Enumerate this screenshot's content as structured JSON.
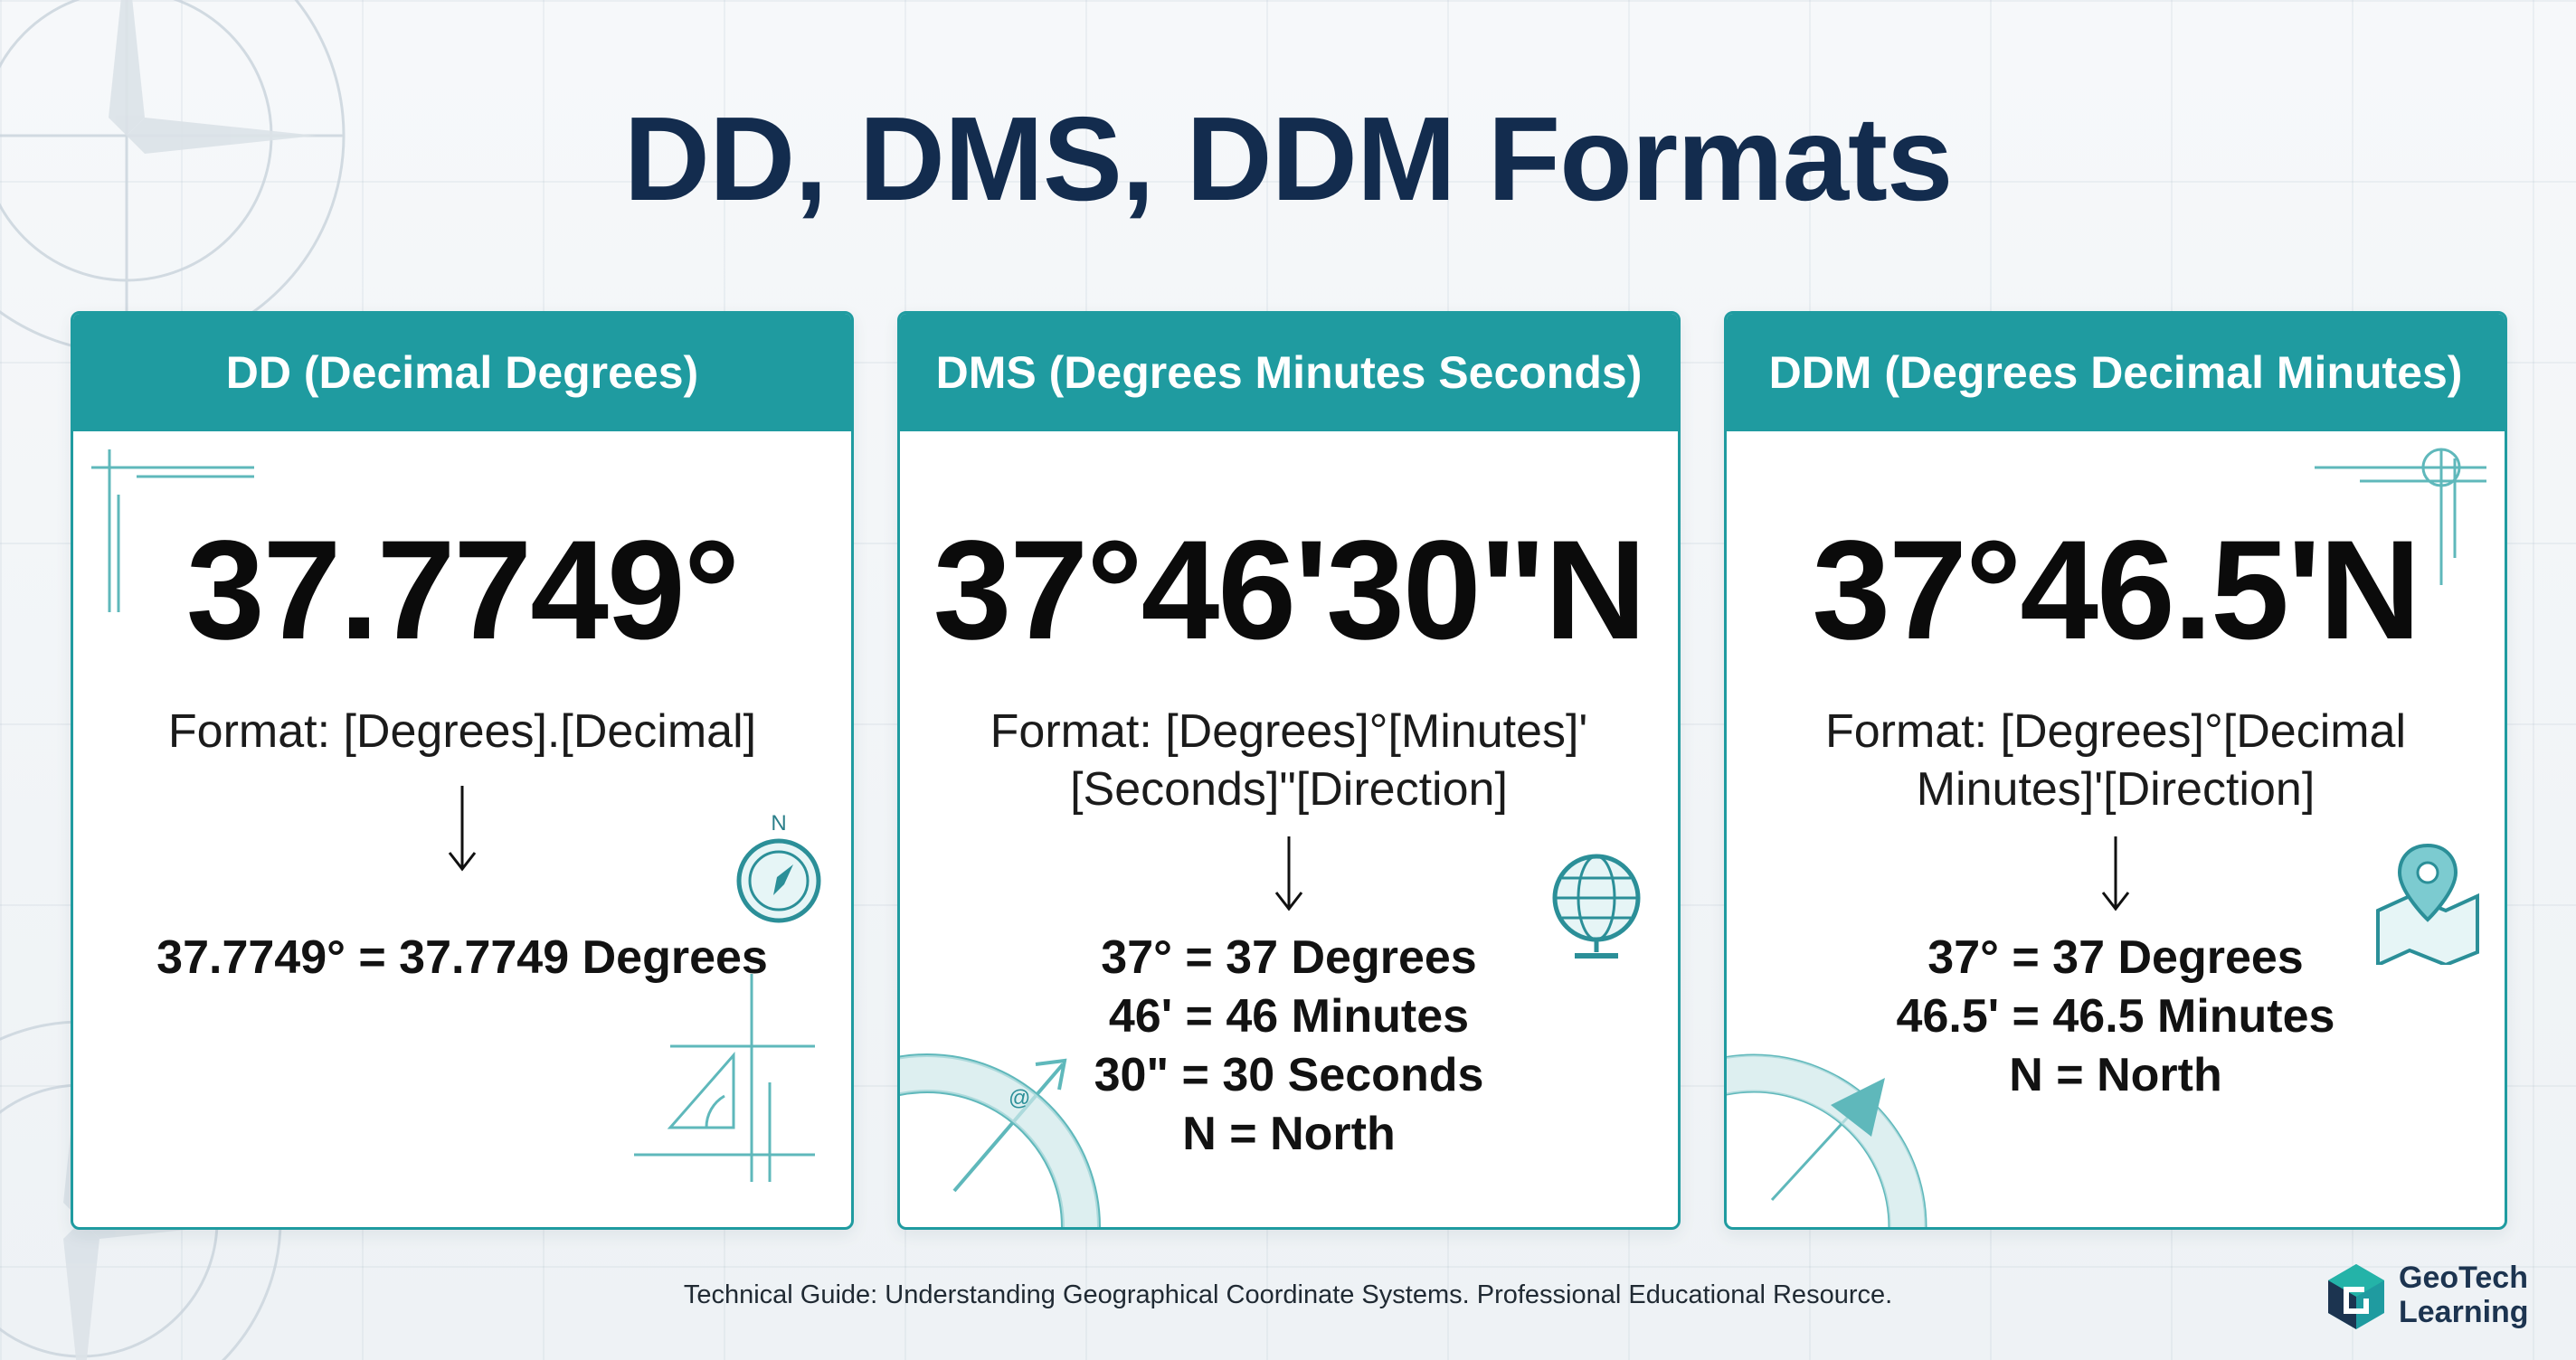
{
  "title": "DD, DMS, DDM Formats",
  "cards": [
    {
      "header": "DD (Decimal Degrees)",
      "value": "37.7749°",
      "format_lines": [
        "Format: [Degrees].[Decimal]"
      ],
      "explanation_lines": [
        "37.7749° = 37.7749 Degrees"
      ],
      "icons": [
        "compass-icon",
        "protractor-icon"
      ]
    },
    {
      "header": "DMS (Degrees Minutes Seconds)",
      "value": "37°46'30\"N",
      "format_lines": [
        "Format: [Degrees]°[Minutes]'",
        "[Seconds]\"[Direction]"
      ],
      "explanation_lines": [
        "37° = 37 Degrees",
        "46' = 46 Minutes",
        "30\" = 30 Seconds",
        "N = North"
      ],
      "icons": [
        "globe-icon",
        "compass-rose-icon"
      ]
    },
    {
      "header": "DDM (Degrees Decimal Minutes)",
      "value": "37°46.5'N",
      "format_lines": [
        "Format: [Degrees]°[Decimal",
        "Minutes]'[Direction]"
      ],
      "explanation_lines": [
        "37° = 37 Degrees",
        "46.5' = 46.5 Minutes",
        "N = North"
      ],
      "icons": [
        "map-pin-icon",
        "crosshair-icon"
      ]
    }
  ],
  "footer": "Technical Guide: Understanding Geographical Coordinate Systems. Professional Educational Resource.",
  "logo": {
    "line1": "GeoTech",
    "line2": "Learning"
  },
  "colors": {
    "accent": "#1f9ba0",
    "title": "#132c4e",
    "text": "#121212"
  }
}
